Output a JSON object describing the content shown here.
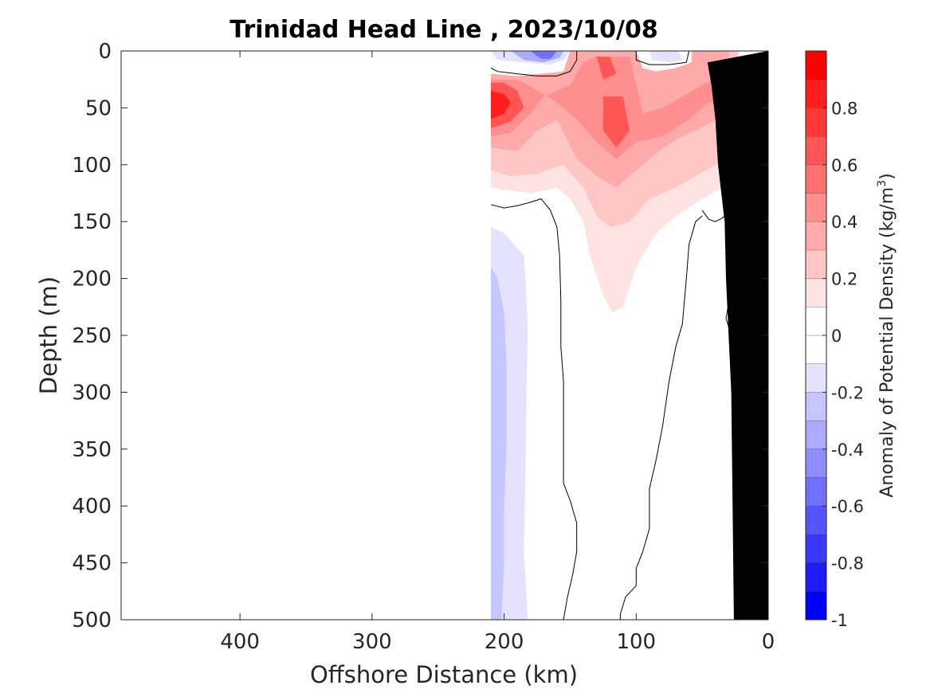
{
  "chart_data": {
    "type": "heatmap",
    "title": "Trinidad Head Line , 2023/10/08",
    "xlabel": "Offshore Distance (km)",
    "ylabel": "Depth (m)",
    "xlim": [
      490,
      0
    ],
    "ylim": [
      0,
      500
    ],
    "x_reversed": true,
    "y_reversed": true,
    "x_ticks": [
      400,
      300,
      200,
      100,
      0
    ],
    "y_ticks": [
      0,
      50,
      100,
      150,
      200,
      250,
      300,
      350,
      400,
      450,
      500
    ],
    "colorbar": {
      "label": "Anomaly of Potential Density (kg/m",
      "label_superscript": "3",
      "label_suffix": ")",
      "range": [
        -1,
        1
      ],
      "ticks": [
        0.8,
        0.6,
        0.4,
        0.2,
        0,
        -0.2,
        -0.4,
        -0.6,
        -0.8,
        -1
      ],
      "tick_labels": [
        "0.8",
        "0.6",
        "0.4",
        "0.2",
        "0",
        "-0.2",
        "-0.4",
        "-0.6",
        "-0.8",
        "-1"
      ],
      "levels": [
        {
          "from": 0.9,
          "to": 1.0,
          "color": "#ff0000"
        },
        {
          "from": 0.8,
          "to": 0.9,
          "color": "#ff1c1c"
        },
        {
          "from": 0.7,
          "to": 0.8,
          "color": "#ff3838"
        },
        {
          "from": 0.6,
          "to": 0.7,
          "color": "#ff5555"
        },
        {
          "from": 0.5,
          "to": 0.6,
          "color": "#ff7171"
        },
        {
          "from": 0.4,
          "to": 0.5,
          "color": "#ff8e8e"
        },
        {
          "from": 0.3,
          "to": 0.4,
          "color": "#ffaaaa"
        },
        {
          "from": 0.2,
          "to": 0.3,
          "color": "#ffc6c6"
        },
        {
          "from": 0.1,
          "to": 0.2,
          "color": "#ffe3e3"
        },
        {
          "from": 0.0,
          "to": 0.1,
          "color": "#ffffff"
        },
        {
          "from": -0.1,
          "to": 0.0,
          "color": "#ffffff"
        },
        {
          "from": -0.2,
          "to": -0.1,
          "color": "#e3e3ff"
        },
        {
          "from": -0.3,
          "to": -0.2,
          "color": "#c6c6ff"
        },
        {
          "from": -0.4,
          "to": -0.3,
          "color": "#aaaaff"
        },
        {
          "from": -0.5,
          "to": -0.4,
          "color": "#8e8eff"
        },
        {
          "from": -0.6,
          "to": -0.5,
          "color": "#7171ff"
        },
        {
          "from": -0.7,
          "to": -0.6,
          "color": "#5555ff"
        },
        {
          "from": -0.8,
          "to": -0.7,
          "color": "#3838ff"
        },
        {
          "from": -0.9,
          "to": -0.8,
          "color": "#1c1cff"
        },
        {
          "from": -1.0,
          "to": -0.9,
          "color": "#0000ff"
        }
      ]
    },
    "regions": [
      {
        "name": "positive-anomaly-0.1",
        "level": 0.1,
        "color": "#ffe3e3",
        "points": [
          [
            210,
            0
          ],
          [
            210,
            120
          ],
          [
            200,
            122
          ],
          [
            180,
            125
          ],
          [
            160,
            120
          ],
          [
            150,
            130
          ],
          [
            140,
            150
          ],
          [
            135,
            180
          ],
          [
            125,
            215
          ],
          [
            118,
            230
          ],
          [
            110,
            225
          ],
          [
            100,
            190
          ],
          [
            85,
            160
          ],
          [
            70,
            145
          ],
          [
            50,
            130
          ],
          [
            35,
            120
          ],
          [
            22,
            110
          ],
          [
            22,
            0
          ]
        ]
      },
      {
        "name": "positive-anomaly-0.2",
        "level": 0.2,
        "color": "#ffc6c6",
        "points": [
          [
            210,
            0
          ],
          [
            210,
            105
          ],
          [
            195,
            110
          ],
          [
            175,
            108
          ],
          [
            155,
            100
          ],
          [
            140,
            120
          ],
          [
            130,
            145
          ],
          [
            120,
            155
          ],
          [
            105,
            150
          ],
          [
            90,
            130
          ],
          [
            70,
            120
          ],
          [
            55,
            110
          ],
          [
            40,
            100
          ],
          [
            25,
            85
          ],
          [
            23,
            0
          ]
        ]
      },
      {
        "name": "positive-anomaly-0.3",
        "level": 0.3,
        "color": "#ffaaaa",
        "points": [
          [
            210,
            10
          ],
          [
            210,
            85
          ],
          [
            190,
            88
          ],
          [
            175,
            70
          ],
          [
            160,
            60
          ],
          [
            145,
            95
          ],
          [
            130,
            110
          ],
          [
            115,
            120
          ],
          [
            100,
            105
          ],
          [
            85,
            90
          ],
          [
            70,
            78
          ],
          [
            55,
            70
          ],
          [
            35,
            58
          ],
          [
            25,
            45
          ],
          [
            30,
            0
          ],
          [
            160,
            0
          ],
          [
            175,
            10
          ]
        ]
      },
      {
        "name": "positive-anomaly-0.4",
        "level": 0.4,
        "color": "#ff8e8e",
        "points": [
          [
            210,
            25
          ],
          [
            210,
            75
          ],
          [
            195,
            72
          ],
          [
            180,
            55
          ],
          [
            170,
            40
          ],
          [
            150,
            30
          ],
          [
            140,
            10
          ],
          [
            130,
            5
          ],
          [
            105,
            5
          ],
          [
            100,
            30
          ],
          [
            95,
            55
          ],
          [
            80,
            50
          ],
          [
            65,
            40
          ],
          [
            50,
            30
          ],
          [
            30,
            20
          ],
          [
            28,
            50
          ],
          [
            45,
            45
          ],
          [
            60,
            60
          ],
          [
            80,
            75
          ],
          [
            100,
            80
          ],
          [
            115,
            95
          ],
          [
            130,
            80
          ],
          [
            145,
            60
          ],
          [
            160,
            45
          ],
          [
            175,
            35
          ],
          [
            190,
            25
          ]
        ]
      },
      {
        "name": "positive-anomaly-0.6",
        "level": 0.6,
        "color": "#ff5555",
        "points": [
          [
            210,
            28
          ],
          [
            210,
            68
          ],
          [
            195,
            62
          ],
          [
            185,
            50
          ],
          [
            190,
            35
          ],
          [
            200,
            28
          ]
        ]
      },
      {
        "name": "positive-anomaly-0.6-b",
        "level": 0.6,
        "color": "#ff5555",
        "points": [
          [
            130,
            5
          ],
          [
            120,
            5
          ],
          [
            115,
            20
          ],
          [
            125,
            25
          ]
        ]
      },
      {
        "name": "positive-anomaly-0.6-c",
        "level": 0.6,
        "color": "#ff5555",
        "points": [
          [
            125,
            40
          ],
          [
            110,
            40
          ],
          [
            105,
            70
          ],
          [
            115,
            85
          ],
          [
            125,
            70
          ]
        ]
      },
      {
        "name": "positive-anomaly-0.6-d",
        "level": 0.6,
        "color": "#ff5555",
        "points": [
          [
            40,
            15
          ],
          [
            28,
            20
          ],
          [
            30,
            40
          ],
          [
            40,
            35
          ]
        ]
      },
      {
        "name": "positive-anomaly-0.8",
        "level": 0.8,
        "color": "#ff1c1c",
        "points": [
          [
            210,
            35
          ],
          [
            210,
            60
          ],
          [
            200,
            55
          ],
          [
            195,
            45
          ],
          [
            200,
            38
          ]
        ]
      },
      {
        "name": "surface-white-patch",
        "level": 0.0,
        "color": "#ffffff",
        "points": [
          [
            210,
            0
          ],
          [
            210,
            20
          ],
          [
            190,
            22
          ],
          [
            172,
            20
          ],
          [
            155,
            18
          ],
          [
            150,
            0
          ]
        ]
      },
      {
        "name": "surface-white-patch-b",
        "level": 0.0,
        "color": "#ffffff",
        "points": [
          [
            100,
            0
          ],
          [
            95,
            15
          ],
          [
            85,
            18
          ],
          [
            70,
            15
          ],
          [
            58,
            10
          ],
          [
            58,
            0
          ]
        ]
      },
      {
        "name": "negative-anomaly-0.1-surface",
        "level": -0.1,
        "color": "#e3e3ff",
        "points": [
          [
            210,
            0
          ],
          [
            205,
            8
          ],
          [
            185,
            10
          ],
          [
            165,
            12
          ],
          [
            155,
            8
          ],
          [
            150,
            0
          ]
        ]
      },
      {
        "name": "negative-anomaly-0.3-surface",
        "level": -0.3,
        "color": "#aaaaff",
        "points": [
          [
            195,
            0
          ],
          [
            185,
            8
          ],
          [
            170,
            10
          ],
          [
            158,
            6
          ],
          [
            155,
            0
          ]
        ]
      },
      {
        "name": "negative-anomaly-0.5-surface",
        "level": -0.5,
        "color": "#7171ff",
        "points": [
          [
            180,
            0
          ],
          [
            172,
            7
          ],
          [
            165,
            7
          ],
          [
            160,
            0
          ]
        ]
      },
      {
        "name": "negative-anomaly-0.1-surface-b",
        "level": -0.1,
        "color": "#e3e3ff",
        "points": [
          [
            90,
            0
          ],
          [
            88,
            8
          ],
          [
            75,
            10
          ],
          [
            65,
            8
          ],
          [
            68,
            0
          ]
        ]
      },
      {
        "name": "negative-anomaly-0.1-deep",
        "level": -0.1,
        "color": "#e3e3ff",
        "points": [
          [
            210,
            155
          ],
          [
            200,
            160
          ],
          [
            185,
            180
          ],
          [
            182,
            240
          ],
          [
            183,
            300
          ],
          [
            184,
            380
          ],
          [
            185,
            440
          ],
          [
            182,
            500
          ],
          [
            210,
            500
          ]
        ]
      },
      {
        "name": "negative-anomaly-0.2-deep",
        "level": -0.2,
        "color": "#c6c6ff",
        "points": [
          [
            210,
            190
          ],
          [
            205,
            200
          ],
          [
            200,
            230
          ],
          [
            198,
            280
          ],
          [
            198,
            340
          ],
          [
            200,
            400
          ],
          [
            200,
            450
          ],
          [
            202,
            500
          ],
          [
            210,
            500
          ]
        ]
      }
    ],
    "zero_contours": [
      {
        "name": "zero-contour-surface",
        "points": [
          [
            210,
            15
          ],
          [
            205,
            18
          ],
          [
            190,
            20
          ],
          [
            175,
            22
          ],
          [
            160,
            22
          ],
          [
            150,
            18
          ],
          [
            145,
            8
          ],
          [
            145,
            0
          ]
        ]
      },
      {
        "name": "zero-contour-surface-b",
        "points": [
          [
            100,
            0
          ],
          [
            100,
            8
          ],
          [
            90,
            12
          ],
          [
            75,
            12
          ],
          [
            62,
            10
          ],
          [
            60,
            0
          ]
        ]
      },
      {
        "name": "zero-contour-left",
        "points": [
          [
            210,
            135
          ],
          [
            200,
            138
          ],
          [
            190,
            136
          ],
          [
            180,
            133
          ],
          [
            172,
            130
          ],
          [
            165,
            140
          ],
          [
            160,
            155
          ],
          [
            158,
            180
          ],
          [
            157,
            220
          ],
          [
            157,
            260
          ],
          [
            155,
            290
          ],
          [
            155,
            320
          ],
          [
            155,
            350
          ],
          [
            155,
            380
          ],
          [
            150,
            395
          ],
          [
            145,
            415
          ],
          [
            145,
            440
          ],
          [
            148,
            460
          ],
          [
            152,
            480
          ],
          [
            155,
            500
          ]
        ]
      },
      {
        "name": "zero-contour-right",
        "points": [
          [
            50,
            140
          ],
          [
            45,
            148
          ],
          [
            40,
            150
          ],
          [
            35,
            147
          ],
          [
            30,
            142
          ],
          [
            20,
            135
          ]
        ]
      },
      {
        "name": "zero-contour-mid",
        "points": [
          [
            50,
            145
          ],
          [
            55,
            150
          ],
          [
            60,
            170
          ],
          [
            62,
            200
          ],
          [
            65,
            240
          ],
          [
            70,
            260
          ],
          [
            75,
            290
          ],
          [
            80,
            330
          ],
          [
            85,
            360
          ],
          [
            90,
            385
          ],
          [
            90,
            420
          ],
          [
            95,
            440
          ],
          [
            100,
            455
          ],
          [
            100,
            470
          ],
          [
            108,
            480
          ],
          [
            112,
            495
          ],
          [
            112,
            500
          ]
        ]
      },
      {
        "name": "zero-contour-small",
        "points": [
          [
            20,
            212
          ],
          [
            25,
            215
          ],
          [
            30,
            222
          ],
          [
            32,
            235
          ],
          [
            28,
            250
          ],
          [
            25,
            240
          ],
          [
            20,
            235
          ]
        ]
      }
    ],
    "bathymetry": {
      "color": "#000000",
      "points": [
        [
          0,
          0
        ],
        [
          0,
          500
        ],
        [
          26,
          500
        ],
        [
          27,
          400
        ],
        [
          28,
          300
        ],
        [
          30,
          250
        ],
        [
          32,
          200
        ],
        [
          33,
          150
        ],
        [
          38,
          100
        ],
        [
          40,
          60
        ],
        [
          43,
          30
        ],
        [
          46,
          10
        ],
        [
          0,
          0
        ]
      ]
    }
  }
}
